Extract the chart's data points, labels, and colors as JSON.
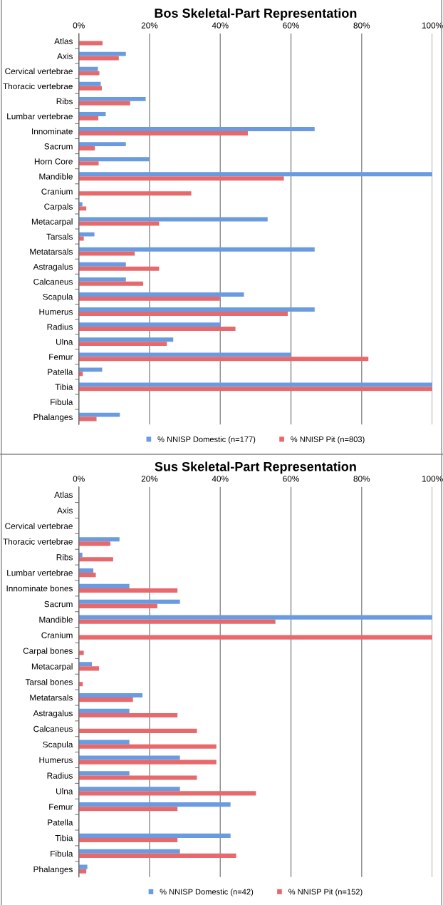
{
  "chart_data": [
    {
      "type": "bar",
      "orientation": "horizontal",
      "title": "Bos Skeletal-Part Representation",
      "categories": [
        "Atlas",
        "Axis",
        "Cervical vertebrae",
        "Thoracic vertebrae",
        "Ribs",
        "Lumbar vertebrae",
        "Innominate",
        "Sacrum",
        "Horn Core",
        "Mandible",
        "Cranium",
        "Carpals",
        "Metacarpal",
        "Tarsals",
        "Metatarsals",
        "Astragalus",
        "Calcaneus",
        "Scapula",
        "Humerus",
        "Radius",
        "Ulna",
        "Femur",
        "Patella",
        "Tibia",
        "Fibula",
        "Phalanges"
      ],
      "series": [
        {
          "name": "% NNISP Domestic (n=177)",
          "color": "#6a9be0",
          "values": [
            0,
            13.3,
            5.4,
            6.2,
            18.9,
            7.6,
            66.7,
            13.3,
            20,
            100,
            0,
            1.0,
            53.4,
            4.4,
            66.7,
            13.3,
            13.3,
            46.7,
            66.7,
            40.1,
            26.7,
            60,
            6.6,
            100,
            0,
            11.6
          ]
        },
        {
          "name": "% NNISP Pit (n=803)",
          "color": "#e8696b",
          "values": [
            6.7,
            11.3,
            5.8,
            6.5,
            14.5,
            5.5,
            47.8,
            4.5,
            5.6,
            58.0,
            31.8,
            2.1,
            22.7,
            1.4,
            15.8,
            22.7,
            18.2,
            39.9,
            59.1,
            44.3,
            24.9,
            81.9,
            1.1,
            100,
            0,
            5.0
          ]
        }
      ],
      "xlim": [
        0,
        100
      ],
      "xticks": [
        {
          "value": 0,
          "label": "0%"
        },
        {
          "value": 20,
          "label": "20%"
        },
        {
          "value": 40,
          "label": "40%"
        },
        {
          "value": 60,
          "label": "60%"
        },
        {
          "value": 80,
          "label": "80%"
        },
        {
          "value": 100,
          "label": "100%"
        }
      ],
      "grid": "x",
      "legend": "bottom"
    },
    {
      "type": "bar",
      "orientation": "horizontal",
      "title": "Sus Skeletal-Part Representation",
      "categories": [
        "Atlas",
        "Axis",
        "Cervical vertebrae",
        "Thoracic vertebrae",
        "Ribs",
        "Lumbar vertebrae",
        "Innominate bones",
        "Sacrum",
        "Mandible",
        "Cranium",
        "Carpal bones",
        "Metacarpal",
        "Tarsal bones",
        "Metatarsals",
        "Astragalus",
        "Calcaneus",
        "Scapula",
        "Humerus",
        "Radius",
        "Ulna",
        "Femur",
        "Patella",
        "Tibia",
        "Fibula",
        "Phalanges"
      ],
      "series": [
        {
          "name": "% NNISP Domestic (n=42)",
          "color": "#6a9be0",
          "values": [
            0,
            0,
            0,
            11.5,
            1.0,
            4.1,
            14.3,
            28.6,
            100,
            0,
            0,
            3.7,
            0,
            18.0,
            14.3,
            0,
            14.3,
            28.6,
            14.3,
            28.6,
            42.9,
            0,
            42.9,
            28.6,
            2.4
          ]
        },
        {
          "name": "% NNISP Pit (n=152)",
          "color": "#e8696b",
          "values": [
            0,
            0,
            0,
            8.9,
            9.7,
            4.8,
            27.9,
            22.2,
            55.6,
            100,
            1.4,
            5.7,
            1.1,
            15.3,
            27.9,
            33.4,
            38.9,
            38.9,
            33.4,
            50.1,
            27.9,
            0,
            27.9,
            44.5,
            2.1
          ]
        }
      ],
      "xlim": [
        0,
        100
      ],
      "xticks": [
        {
          "value": 0,
          "label": "0%"
        },
        {
          "value": 20,
          "label": "20%"
        },
        {
          "value": 40,
          "label": "40%"
        },
        {
          "value": 60,
          "label": "60%"
        },
        {
          "value": 80,
          "label": "80%"
        },
        {
          "value": 100,
          "label": "100%"
        }
      ],
      "grid": "x",
      "legend": "bottom"
    }
  ]
}
